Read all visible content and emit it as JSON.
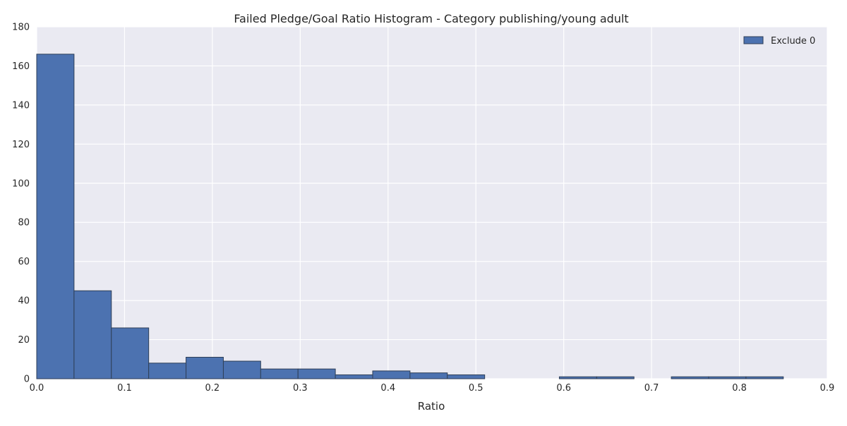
{
  "chart_data": {
    "type": "bar",
    "title": "Failed Pledge/Goal Ratio Histogram - Category publishing/young adult",
    "xlabel": "Ratio",
    "ylabel": "",
    "xlim": [
      0,
      0.9
    ],
    "ylim": [
      0,
      180
    ],
    "xticks": [
      "0.0",
      "0.1",
      "0.2",
      "0.3",
      "0.4",
      "0.5",
      "0.6",
      "0.7",
      "0.8",
      "0.9"
    ],
    "xtick_values": [
      0,
      0.1,
      0.2,
      0.3,
      0.4,
      0.5,
      0.6,
      0.7,
      0.8,
      0.9
    ],
    "yticks": [
      "0",
      "20",
      "40",
      "60",
      "80",
      "100",
      "120",
      "140",
      "160",
      "180"
    ],
    "ytick_values": [
      0,
      20,
      40,
      60,
      80,
      100,
      120,
      140,
      160,
      180
    ],
    "grid": true,
    "legend_position": "top-right",
    "series": [
      {
        "name": "Exclude 0",
        "bin_edges": [
          0.0,
          0.0425,
          0.085,
          0.1275,
          0.17,
          0.2125,
          0.255,
          0.2975,
          0.34,
          0.3825,
          0.425,
          0.4675,
          0.51,
          0.5525,
          0.595,
          0.6375,
          0.68,
          0.7225,
          0.765,
          0.8075,
          0.85
        ],
        "counts": [
          166,
          45,
          26,
          8,
          11,
          9,
          5,
          5,
          2,
          4,
          3,
          2,
          0,
          0,
          1,
          1,
          0,
          1,
          1,
          1
        ]
      }
    ],
    "colors": {
      "bar": "#4c72b0",
      "bar_edge": "#2f3f57",
      "plot_background": "#eaeaf2",
      "grid": "#ffffff"
    }
  }
}
